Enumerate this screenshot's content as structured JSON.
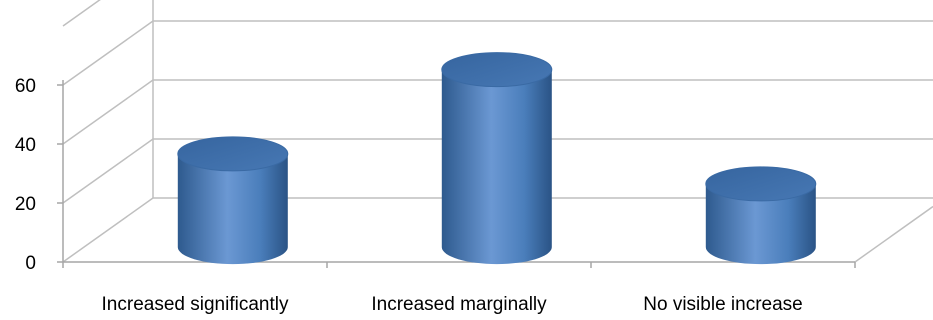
{
  "chart_data": {
    "type": "bar",
    "style": "3d-cylinder",
    "categories": [
      "Increased significantly",
      "Increased marginally",
      "No visible increase"
    ],
    "values": [
      31,
      59,
      21
    ],
    "ylim": [
      0,
      80
    ],
    "yticks": [
      "0",
      "20",
      "40",
      "60"
    ],
    "title": "",
    "xlabel": "",
    "ylabel": "",
    "grid": true,
    "legend": "none",
    "colors": {
      "bar": "#4A7EBB",
      "bar_dark": "#2E5A8E",
      "bar_light": "#7FA7D9",
      "bar_top": "#3F6FA9",
      "grid": "#BFBFBF"
    }
  }
}
